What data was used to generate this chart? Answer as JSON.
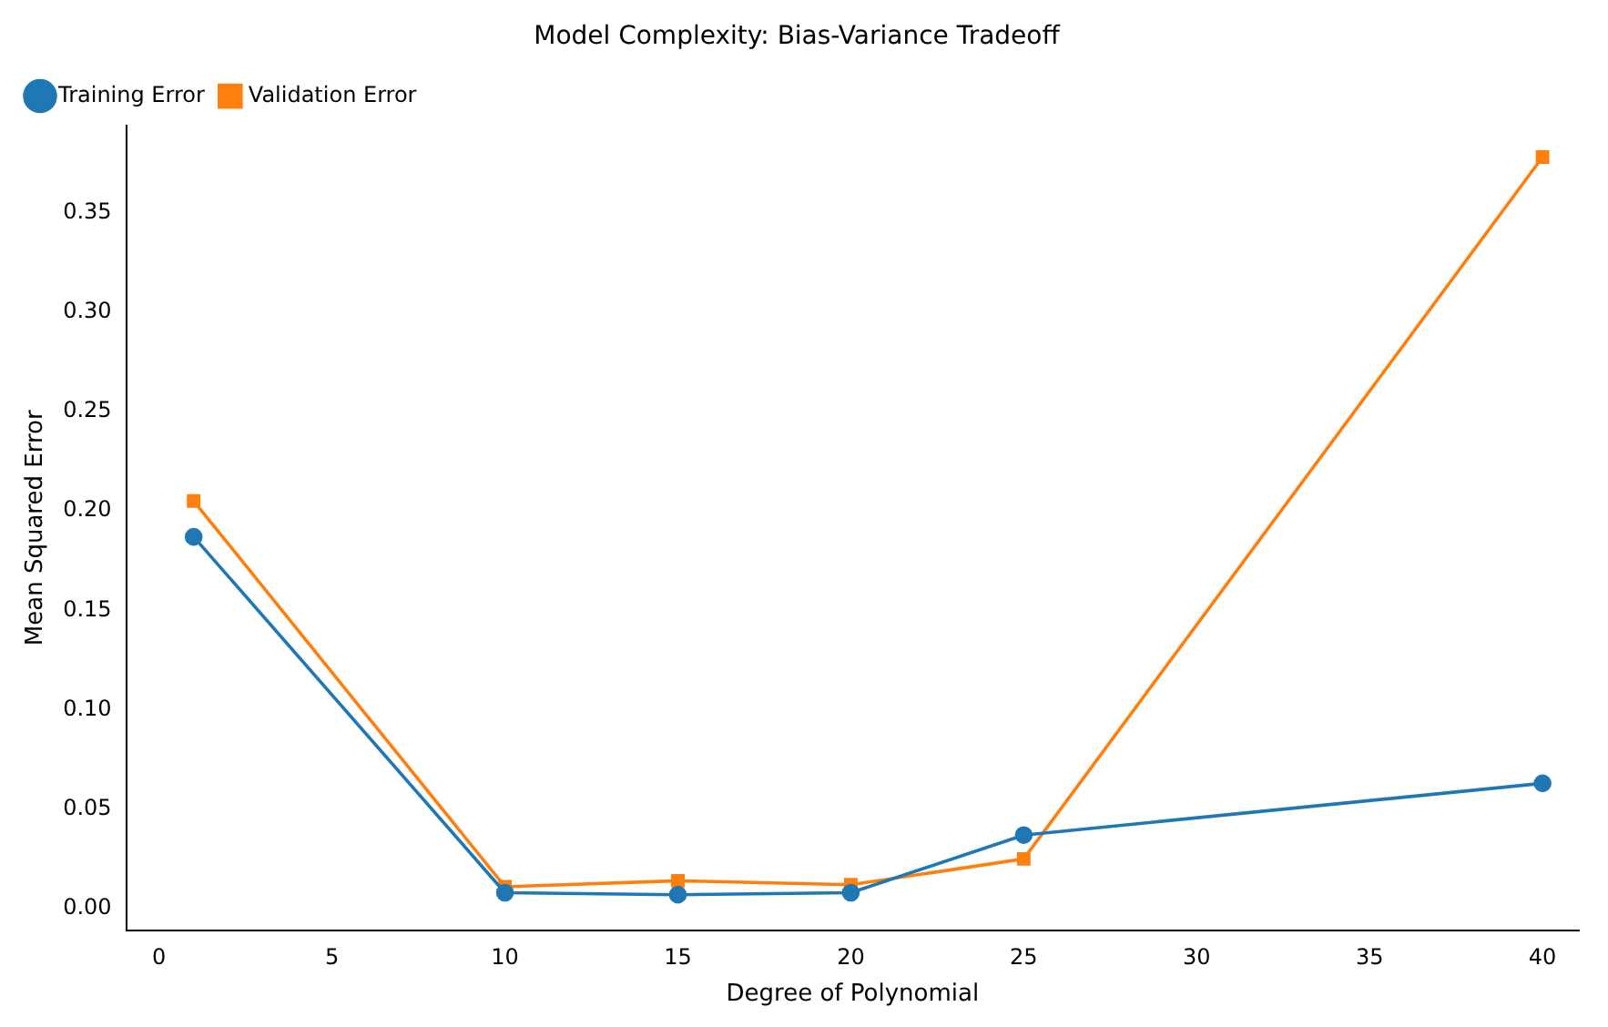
{
  "chart_data": {
    "type": "line",
    "title": "Model Complexity: Bias-Variance Tradeoff",
    "xlabel": "Degree of Polynomial",
    "ylabel": "Mean Squared Error",
    "x": [
      1,
      10,
      15,
      20,
      25,
      40
    ],
    "series": [
      {
        "name": "Training Error",
        "color": "#1f77b4",
        "marker": "circle",
        "values": [
          0.187,
          0.008,
          0.007,
          0.008,
          0.037,
          0.063
        ]
      },
      {
        "name": "Validation Error",
        "color": "#ff7f0e",
        "marker": "square",
        "values": [
          0.205,
          0.011,
          0.014,
          0.012,
          0.025,
          0.378
        ]
      }
    ],
    "xlim": [
      -0.95,
      41.05
    ],
    "xticks": [
      0,
      5,
      10,
      15,
      20,
      25,
      30,
      35,
      40
    ],
    "ylim": [
      -0.011,
      0.394
    ],
    "yticks": [
      {
        "value": 0,
        "label": "0.00"
      },
      0.05,
      {
        "value": 0.1,
        "label": "0.10"
      },
      0.15,
      {
        "value": 0.2,
        "label": "0.20"
      },
      0.25,
      {
        "value": 0.3,
        "label": "0.30"
      },
      0.35
    ],
    "grid": false,
    "legend": "top left",
    "line_style": "solid"
  }
}
